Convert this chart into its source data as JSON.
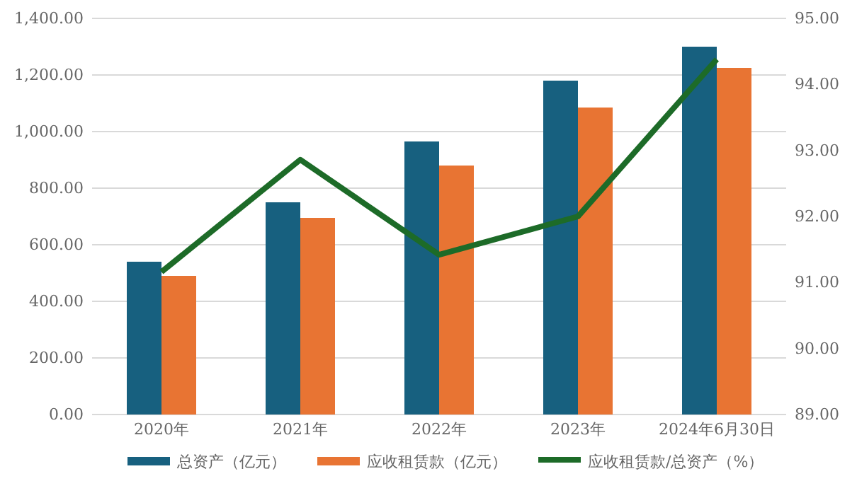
{
  "chart_data": {
    "type": "bar",
    "categories": [
      "2020年",
      "2021年",
      "2022年",
      "2023年",
      "2024年6月30日"
    ],
    "series": [
      {
        "name": "总资产（亿元）",
        "color": "#17607f",
        "values": [
          540,
          750,
          965,
          1180,
          1300
        ]
      },
      {
        "name": "应收租赁款（亿元）",
        "color": "#e87433",
        "values": [
          490,
          695,
          880,
          1085,
          1225
        ]
      },
      {
        "name": "应收租赁款/总资产（%）",
        "color": "#1d6b28",
        "type": "line",
        "axis": "y2",
        "values": [
          91.16,
          92.86,
          91.42,
          92.0,
          94.38
        ]
      }
    ],
    "ylim": [
      0,
      1400
    ],
    "yticks": [
      {
        "value": 0,
        "label": "0.00"
      },
      {
        "value": 200,
        "label": "200.00"
      },
      {
        "value": 400,
        "label": "400.00"
      },
      {
        "value": 600,
        "label": "600.00"
      },
      {
        "value": 800,
        "label": "800.00"
      },
      {
        "value": 1000,
        "label": "1,000.00"
      },
      {
        "value": 1200,
        "label": "1,200.00"
      },
      {
        "value": 1400,
        "label": "1,400.00"
      }
    ],
    "y2lim": [
      89,
      95
    ],
    "y2ticks": [
      {
        "value": 89,
        "label": "89.00"
      },
      {
        "value": 90,
        "label": "90.00"
      },
      {
        "value": 91,
        "label": "91.00"
      },
      {
        "value": 92,
        "label": "92.00"
      },
      {
        "value": 93,
        "label": "93.00"
      },
      {
        "value": 94,
        "label": "94.00"
      },
      {
        "value": 95,
        "label": "95.00"
      }
    ],
    "grid": "y",
    "legend": "bottom",
    "marker": "none",
    "line_style": "solid"
  }
}
